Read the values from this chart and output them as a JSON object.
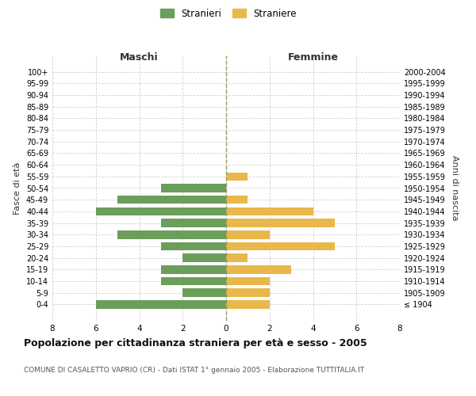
{
  "age_groups": [
    "100+",
    "95-99",
    "90-94",
    "85-89",
    "80-84",
    "75-79",
    "70-74",
    "65-69",
    "60-64",
    "55-59",
    "50-54",
    "45-49",
    "40-44",
    "35-39",
    "30-34",
    "25-29",
    "20-24",
    "15-19",
    "10-14",
    "5-9",
    "0-4"
  ],
  "birth_years": [
    "≤ 1904",
    "1905-1909",
    "1910-1914",
    "1915-1919",
    "1920-1924",
    "1925-1929",
    "1930-1934",
    "1935-1939",
    "1940-1944",
    "1945-1949",
    "1950-1954",
    "1955-1959",
    "1960-1964",
    "1965-1969",
    "1970-1974",
    "1975-1979",
    "1980-1984",
    "1985-1989",
    "1990-1994",
    "1995-1999",
    "2000-2004"
  ],
  "maschi": [
    0,
    0,
    0,
    0,
    0,
    0,
    0,
    0,
    0,
    0,
    3,
    5,
    6,
    3,
    5,
    3,
    2,
    3,
    3,
    2,
    6
  ],
  "femmine": [
    0,
    0,
    0,
    0,
    0,
    0,
    0,
    0,
    0,
    1,
    0,
    1,
    4,
    5,
    2,
    5,
    1,
    3,
    2,
    2,
    2
  ],
  "male_color": "#6a9e5a",
  "female_color": "#e8b84b",
  "background_color": "#ffffff",
  "grid_color": "#cccccc",
  "title": "Popolazione per cittadinanza straniera per età e sesso - 2005",
  "subtitle": "COMUNE DI CASALETTO VAPRIO (CR) - Dati ISTAT 1° gennaio 2005 - Elaborazione TUTTITALIA.IT",
  "xlabel_left": "Maschi",
  "xlabel_right": "Femmine",
  "ylabel_left": "Fasce di età",
  "ylabel_right": "Anni di nascita",
  "legend_male": "Stranieri",
  "legend_female": "Straniere",
  "xlim": 8
}
